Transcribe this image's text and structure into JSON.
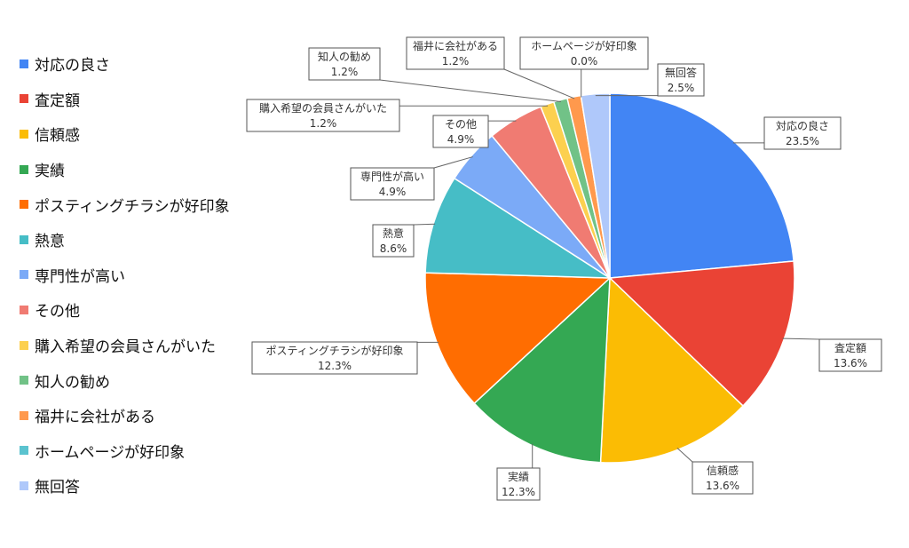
{
  "chart_data": {
    "type": "pie",
    "title": "",
    "legend_position": "left",
    "slices": [
      {
        "label": "対応の良さ",
        "value": 23.5,
        "value_label": "23.5%",
        "color": "#4285F4"
      },
      {
        "label": "査定額",
        "value": 13.6,
        "value_label": "13.6%",
        "color": "#EA4335"
      },
      {
        "label": "信頼感",
        "value": 13.6,
        "value_label": "13.6%",
        "color": "#FBBC04"
      },
      {
        "label": "実績",
        "value": 12.3,
        "value_label": "12.3%",
        "color": "#34A853"
      },
      {
        "label": "ポスティングチラシが好印象",
        "value": 12.3,
        "value_label": "12.3%",
        "color": "#FF6D01"
      },
      {
        "label": "熱意",
        "value": 8.6,
        "value_label": "8.6%",
        "color": "#46BDC6"
      },
      {
        "label": "専門性が高い",
        "value": 4.9,
        "value_label": "4.9%",
        "color": "#7BAAF7"
      },
      {
        "label": "その他",
        "value": 4.9,
        "value_label": "4.9%",
        "color": "#F07B72"
      },
      {
        "label": "購入希望の会員さんがいた",
        "value": 1.2,
        "value_label": "1.2%",
        "color": "#FCD04F"
      },
      {
        "label": "知人の勧め",
        "value": 1.2,
        "value_label": "1.2%",
        "color": "#71C287"
      },
      {
        "label": "福井に会社がある",
        "value": 1.2,
        "value_label": "1.2%",
        "color": "#FF994D"
      },
      {
        "label": "ホームページが好印象",
        "value": 0.0,
        "value_label": "0.0%",
        "color": "#5BC3CF"
      },
      {
        "label": "無回答",
        "value": 2.5,
        "value_label": "2.5%",
        "color": "#AFC8FA"
      }
    ]
  }
}
